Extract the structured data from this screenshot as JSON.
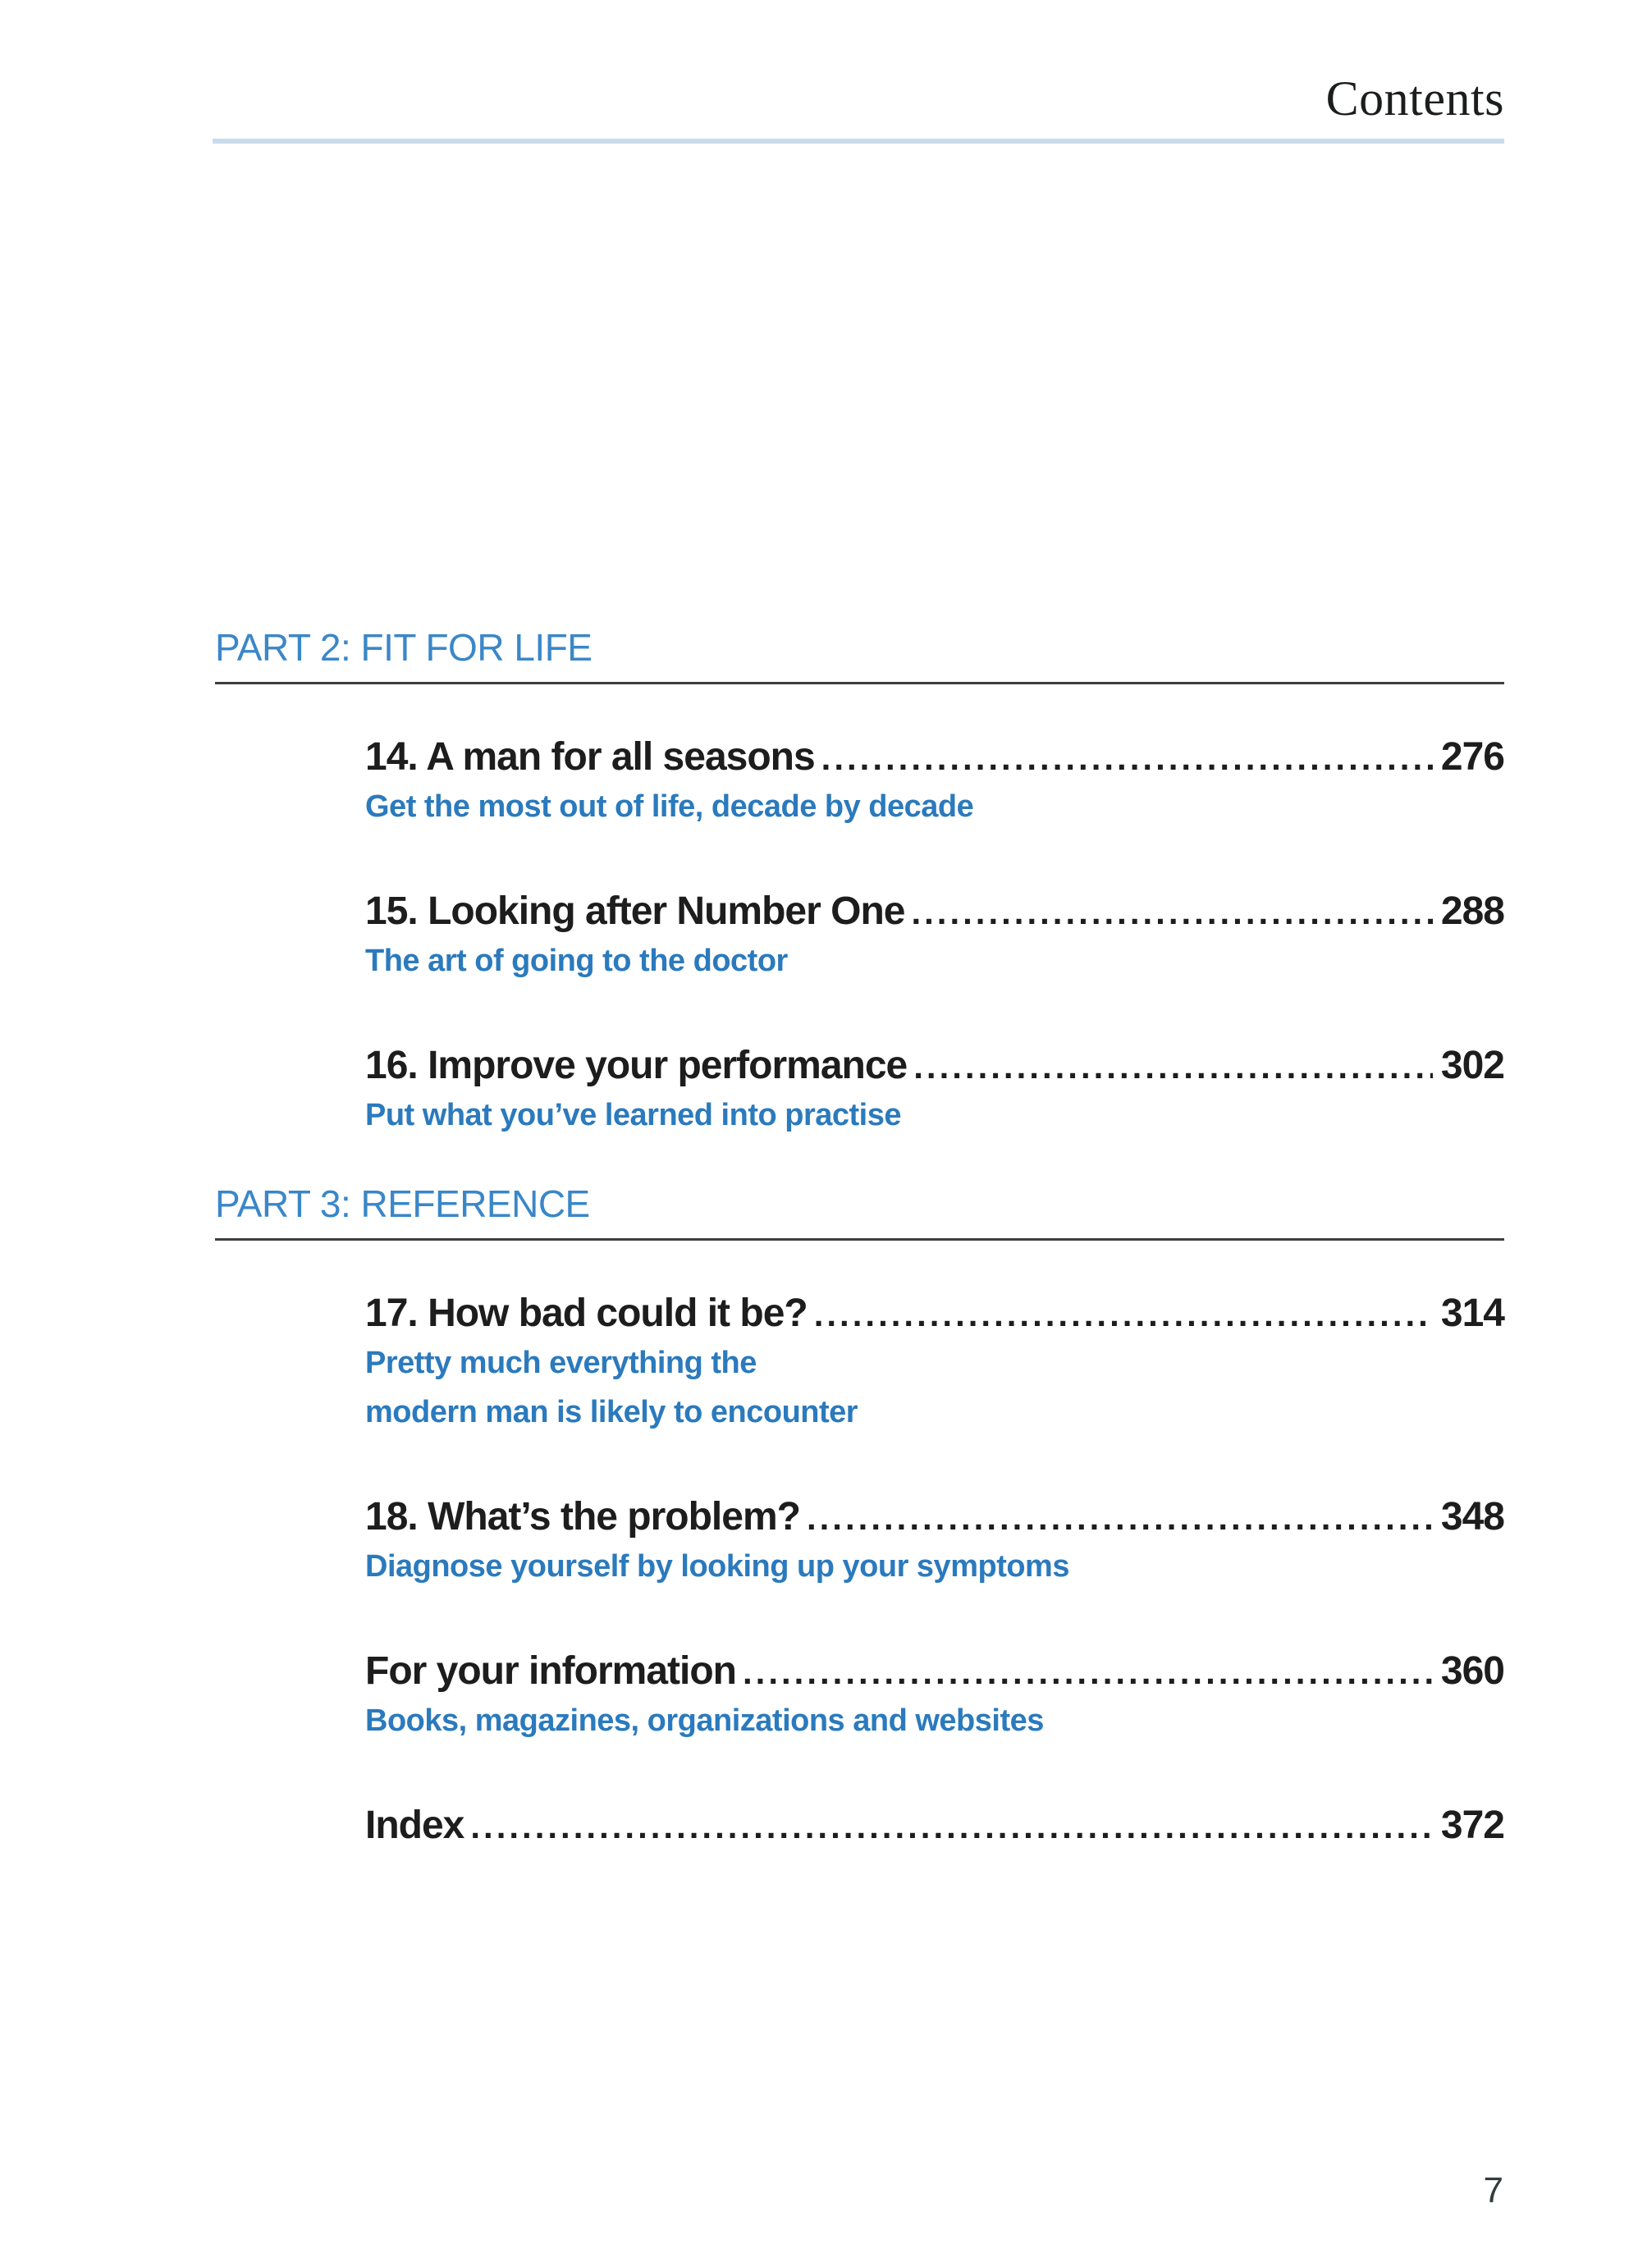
{
  "page": {
    "title": "Contents",
    "page_number": "7"
  },
  "colors": {
    "accent_blue": "#3a87c8",
    "subtitle_blue": "#2b7abd",
    "rule_light": "#c9dcec",
    "rule_dark": "#3e3e3e",
    "text_dark": "#1d1d1d"
  },
  "toc": {
    "sections": [
      {
        "heading": "PART 2: FIT FOR LIFE",
        "entries": [
          {
            "title": "14. A man for all seasons",
            "page": "276",
            "subtitle_lines": [
              "Get the most out of life, decade by decade"
            ]
          },
          {
            "title": "15. Looking after Number One",
            "page": "288",
            "subtitle_lines": [
              "The art of going to the doctor"
            ]
          },
          {
            "title": "16. Improve your performance",
            "page": "302",
            "subtitle_lines": [
              "Put what you’ve learned into practise"
            ]
          }
        ]
      },
      {
        "heading": "PART 3: REFERENCE",
        "entries": [
          {
            "title": "17. How bad could it be?",
            "page": "314",
            "subtitle_lines": [
              "Pretty much everything the",
              "modern man is likely to encounter"
            ]
          },
          {
            "title": "18. What’s the problem?",
            "page": "348",
            "subtitle_lines": [
              "Diagnose yourself by looking up your symptoms"
            ]
          },
          {
            "title": "For your information",
            "page": "360",
            "subtitle_lines": [
              "Books, magazines, organizations and websites"
            ]
          },
          {
            "title": "Index",
            "page": "372",
            "subtitle_lines": []
          }
        ]
      }
    ]
  }
}
